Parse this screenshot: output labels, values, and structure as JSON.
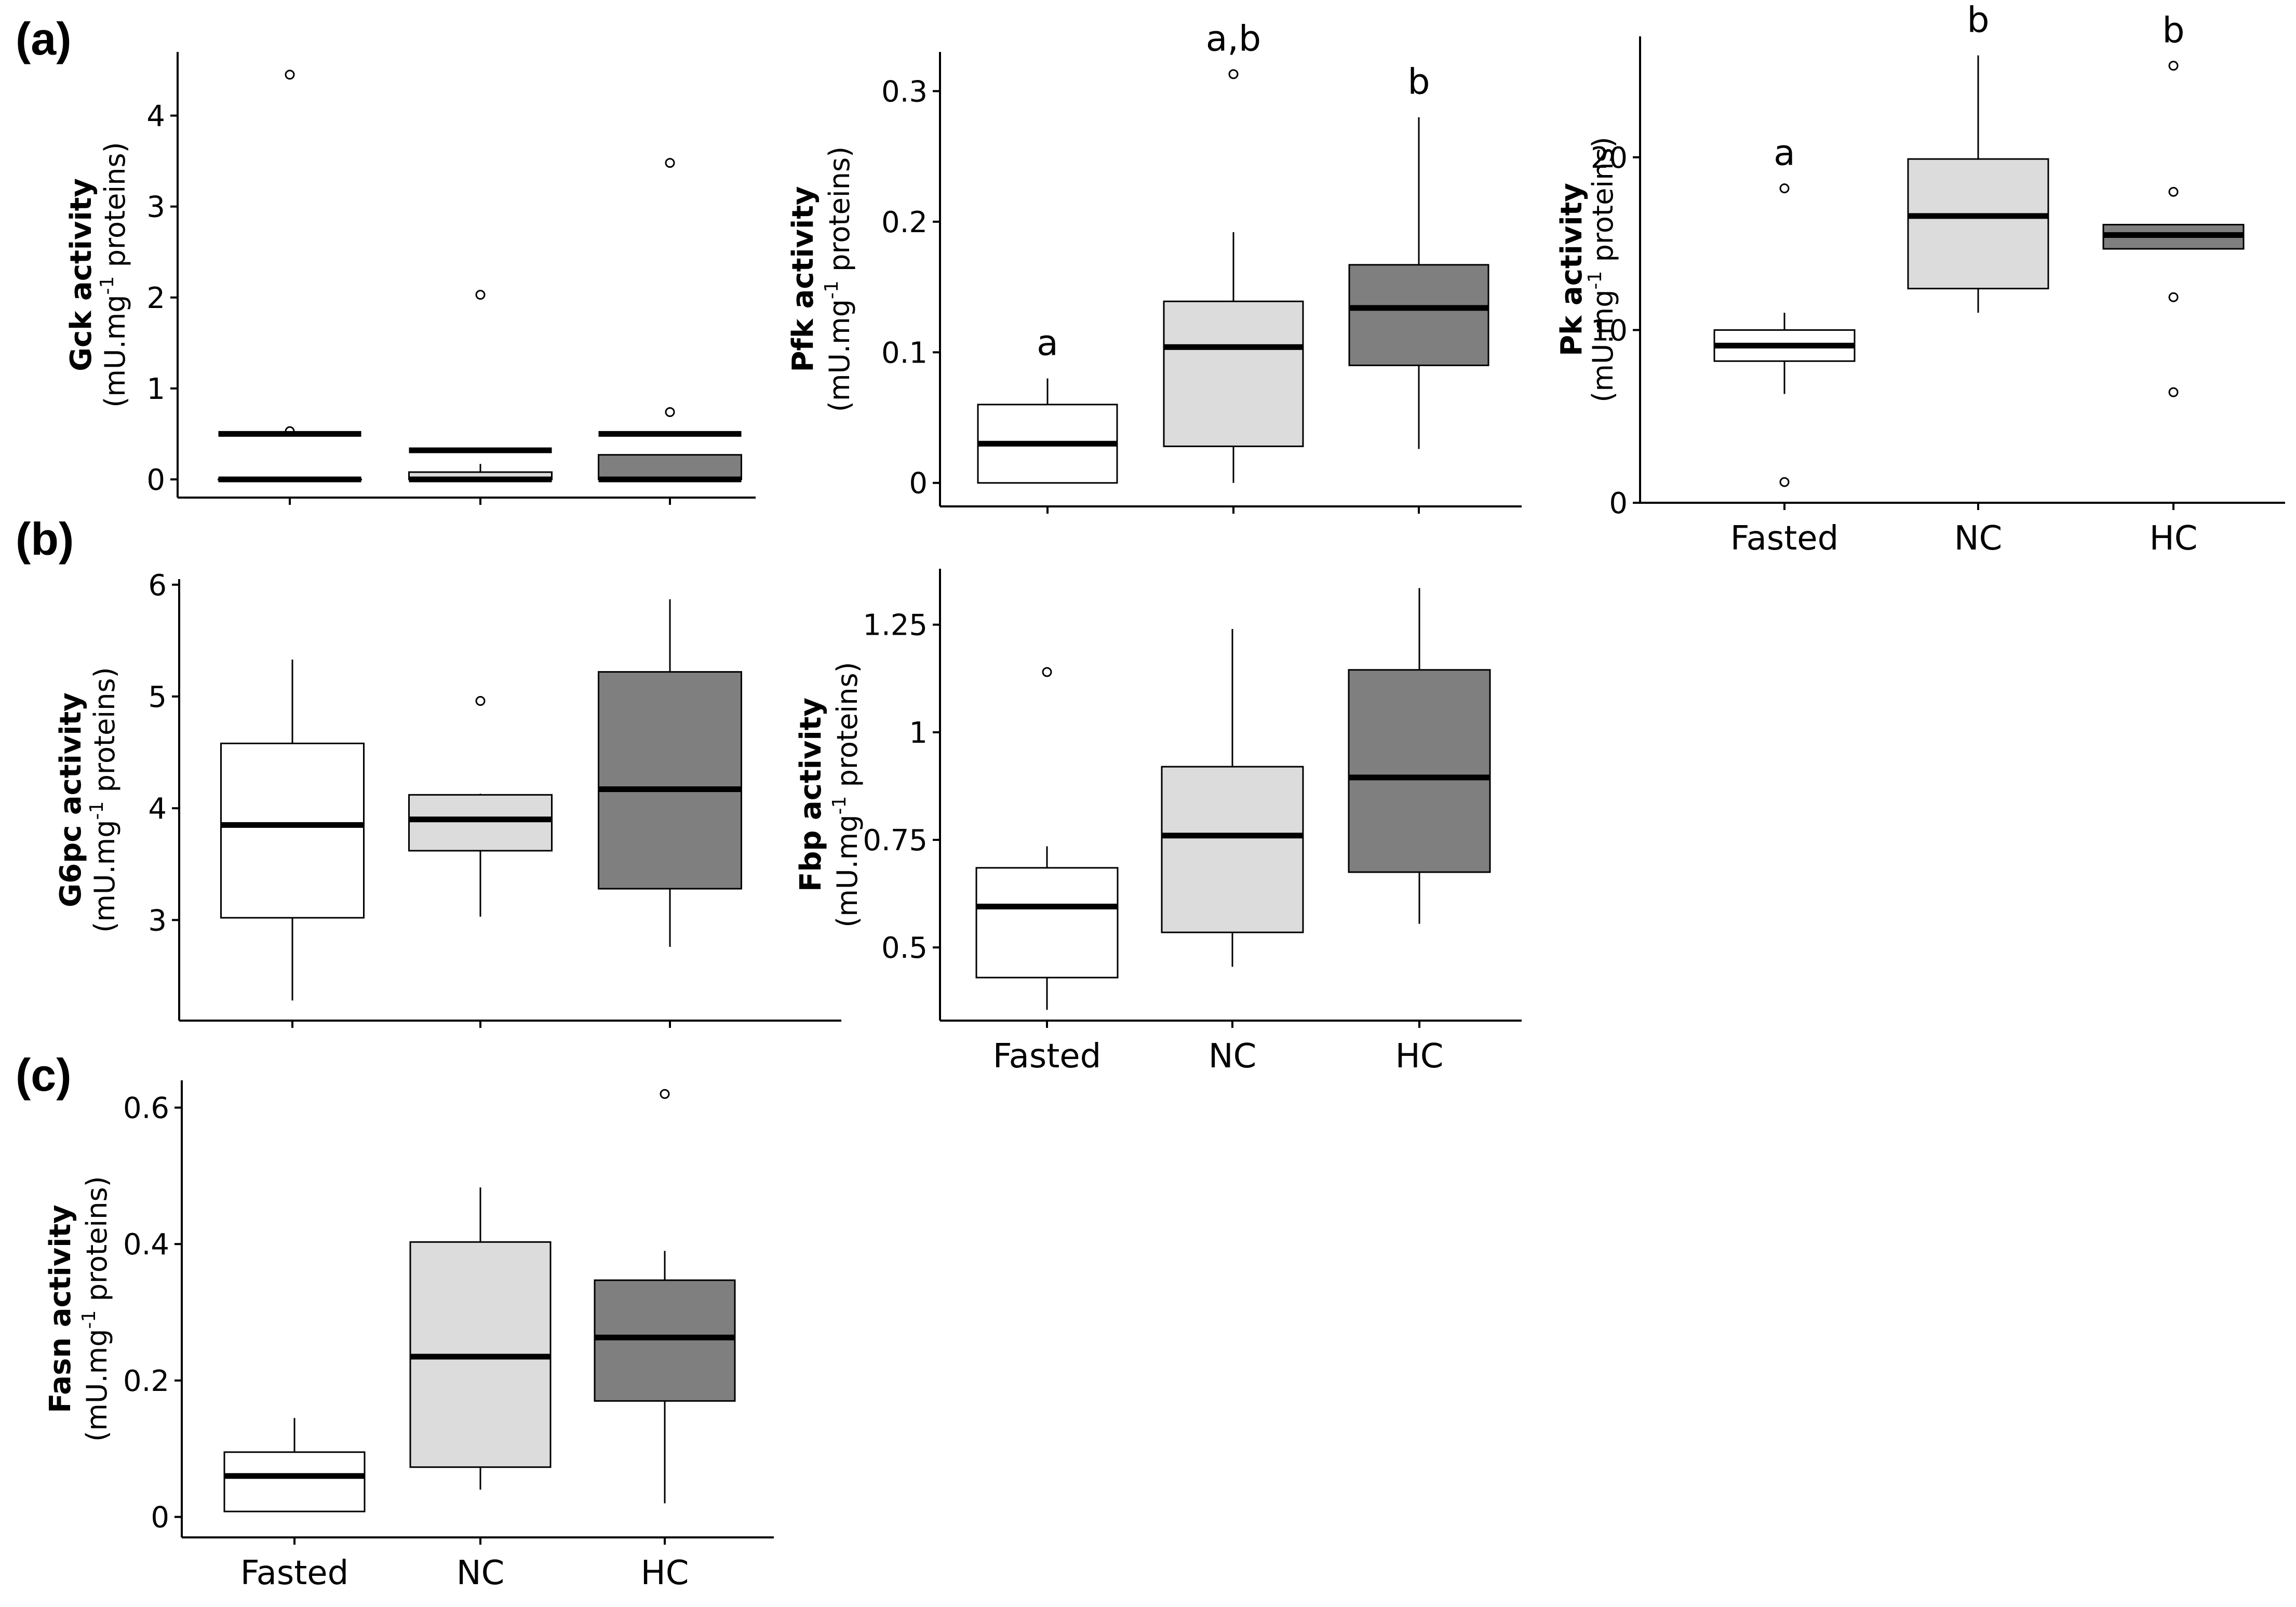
{
  "colors": {
    "fasted": "#ffffff",
    "nc": "#dcdcdc",
    "hc": "#7f7f7f",
    "stroke": "#000000"
  },
  "panel_labels": {
    "a": "(a)",
    "b": "(b)",
    "c": "(c)"
  },
  "unit_label": {
    "prefix": "(mU.mg",
    "sup": "-1",
    "suffix": " proteins)"
  },
  "chart_data": [
    {
      "id": "gck",
      "type": "box",
      "panel": "a",
      "ylabel": "Gck activity",
      "categories": [
        "Fasted",
        "NC",
        "HC"
      ],
      "show_category_labels": false,
      "ylim": [
        -0.2,
        4.7
      ],
      "yticks": [
        0,
        1,
        2,
        3,
        4
      ],
      "ytick_labels": [
        "0",
        "1",
        "2",
        "3",
        "4"
      ],
      "boxes": [
        {
          "q1": 0,
          "median": 0,
          "q3": 0,
          "wlo": 0,
          "whi": 0,
          "mean": 0.5,
          "outliers": [
            4.45,
            0.53
          ],
          "sig": ""
        },
        {
          "q1": 0,
          "median": 0,
          "q3": 0.08,
          "wlo": 0,
          "whi": 0.17,
          "mean": 0.32,
          "outliers": [
            2.03
          ],
          "sig": ""
        },
        {
          "q1": 0,
          "median": 0,
          "q3": 0.27,
          "wlo": 0,
          "whi": 0.27,
          "mean": 0.5,
          "outliers": [
            3.48,
            0.74
          ],
          "sig": ""
        }
      ]
    },
    {
      "id": "pfk",
      "type": "box",
      "panel": "a",
      "ylabel": "Pfk activity",
      "categories": [
        "Fasted",
        "NC",
        "HC"
      ],
      "show_category_labels": false,
      "ylim": [
        -0.018,
        0.33
      ],
      "yticks": [
        0,
        0.1,
        0.2,
        0.3
      ],
      "ytick_labels": [
        "0",
        "0.1",
        "0.2",
        "0.3"
      ],
      "boxes": [
        {
          "q1": 0,
          "median": 0.03,
          "q3": 0.06,
          "wlo": 0,
          "whi": 0.08,
          "outliers": [],
          "sig": "a"
        },
        {
          "q1": 0.028,
          "median": 0.104,
          "q3": 0.139,
          "wlo": 0,
          "whi": 0.192,
          "outliers": [
            0.313
          ],
          "sig": "a,b"
        },
        {
          "q1": 0.09,
          "median": 0.134,
          "q3": 0.167,
          "wlo": 0.026,
          "whi": 0.28,
          "outliers": [],
          "sig": "b"
        }
      ]
    },
    {
      "id": "pk",
      "type": "box",
      "panel": "a",
      "ylabel": "Pk activity",
      "categories": [
        "Fasted",
        "NC",
        "HC"
      ],
      "show_category_labels": true,
      "ylim": [
        0,
        27
      ],
      "yticks": [
        0,
        10,
        20
      ],
      "ytick_labels": [
        "0",
        "10",
        "20"
      ],
      "boxes": [
        {
          "q1": 8.2,
          "median": 9.1,
          "q3": 10.0,
          "wlo": 6.3,
          "whi": 11.0,
          "outliers": [
            18.2,
            1.2
          ],
          "sig": "a"
        },
        {
          "q1": 12.4,
          "median": 16.6,
          "q3": 19.9,
          "wlo": 11.0,
          "whi": 25.9,
          "outliers": [],
          "sig": "b"
        },
        {
          "q1": 14.7,
          "median": 15.5,
          "q3": 16.1,
          "wlo": 14.7,
          "whi": 16.1,
          "outliers": [
            25.3,
            18.0,
            11.9,
            6.4
          ],
          "sig": "b"
        }
      ]
    },
    {
      "id": "g6pc",
      "type": "box",
      "panel": "b",
      "ylabel": "G6pc activity",
      "categories": [
        "Fasted",
        "NC",
        "HC"
      ],
      "show_category_labels": false,
      "ylim": [
        2.1,
        6.05
      ],
      "yticks": [
        3,
        4,
        5,
        6
      ],
      "ytick_labels": [
        "3",
        "4",
        "5",
        "6"
      ],
      "boxes": [
        {
          "q1": 3.02,
          "median": 3.85,
          "q3": 4.58,
          "wlo": 2.28,
          "whi": 5.33,
          "outliers": [],
          "sig": ""
        },
        {
          "q1": 3.62,
          "median": 3.9,
          "q3": 4.12,
          "wlo": 3.03,
          "whi": 4.13,
          "outliers": [
            4.96
          ],
          "sig": ""
        },
        {
          "q1": 3.28,
          "median": 4.17,
          "q3": 5.22,
          "wlo": 2.76,
          "whi": 5.87,
          "outliers": [],
          "sig": ""
        }
      ]
    },
    {
      "id": "fbp",
      "type": "box",
      "panel": "b",
      "ylabel": "Fbp activity",
      "categories": [
        "Fasted",
        "NC",
        "HC"
      ],
      "show_category_labels": true,
      "ylim": [
        0.33,
        1.38
      ],
      "yticks": [
        0.5,
        0.75,
        1,
        1.25
      ],
      "ytick_labels": [
        "0.5",
        "0.75",
        "1",
        "1.25"
      ],
      "boxes": [
        {
          "q1": 0.43,
          "median": 0.595,
          "q3": 0.685,
          "wlo": 0.355,
          "whi": 0.735,
          "outliers": [
            1.14
          ],
          "sig": ""
        },
        {
          "q1": 0.535,
          "median": 0.76,
          "q3": 0.92,
          "wlo": 0.455,
          "whi": 1.24,
          "outliers": [],
          "sig": ""
        },
        {
          "q1": 0.675,
          "median": 0.895,
          "q3": 1.145,
          "wlo": 0.555,
          "whi": 1.335,
          "outliers": [],
          "sig": ""
        }
      ]
    },
    {
      "id": "fasn",
      "type": "box",
      "panel": "c",
      "ylabel": "Fasn activity",
      "categories": [
        "Fasted",
        "NC",
        "HC"
      ],
      "show_category_labels": true,
      "ylim": [
        -0.03,
        0.64
      ],
      "yticks": [
        0,
        0.2,
        0.4,
        0.6
      ],
      "ytick_labels": [
        "0",
        "0.2",
        "0.4",
        "0.6"
      ],
      "boxes": [
        {
          "q1": 0.008,
          "median": 0.06,
          "q3": 0.095,
          "wlo": 0.008,
          "whi": 0.145,
          "outliers": [],
          "sig": ""
        },
        {
          "q1": 0.073,
          "median": 0.235,
          "q3": 0.403,
          "wlo": 0.04,
          "whi": 0.483,
          "outliers": [],
          "sig": ""
        },
        {
          "q1": 0.17,
          "median": 0.263,
          "q3": 0.347,
          "wlo": 0.02,
          "whi": 0.39,
          "outliers": [
            0.62
          ],
          "sig": ""
        }
      ]
    }
  ]
}
